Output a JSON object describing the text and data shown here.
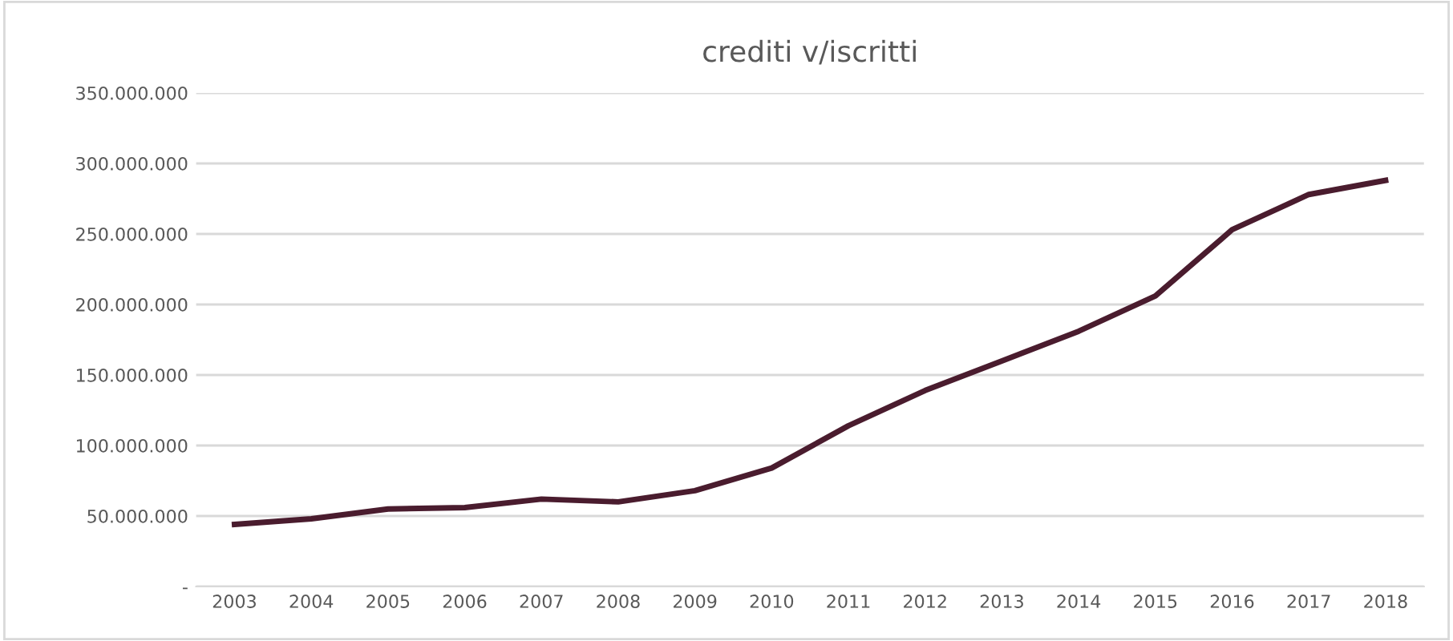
{
  "chart_data": {
    "type": "line",
    "title": "crediti v/iscritti",
    "categories": [
      "2003",
      "2004",
      "2005",
      "2006",
      "2007",
      "2008",
      "2009",
      "2010",
      "2011",
      "2012",
      "2013",
      "2014",
      "2015",
      "2016",
      "2017",
      "2018"
    ],
    "series": [
      {
        "color": "#4a1c2e",
        "values": [
          44000000,
          48000000,
          55000000,
          56000000,
          62000000,
          60000000,
          68000000,
          84000000,
          114000000,
          139000000,
          160000000,
          181000000,
          206000000,
          253000000,
          278000000,
          288000000
        ]
      }
    ],
    "ylim": [
      0,
      350000000
    ],
    "yticks": [
      {
        "value": 0,
        "label": "-"
      },
      {
        "value": 50000000,
        "label": "50.000.000"
      },
      {
        "value": 100000000,
        "label": "100.000.000"
      },
      {
        "value": 150000000,
        "label": "150.000.000"
      },
      {
        "value": 200000000,
        "label": "200.000.000"
      },
      {
        "value": 250000000,
        "label": "250.000.000"
      },
      {
        "value": 300000000,
        "label": "300.000.000"
      },
      {
        "value": 350000000,
        "label": "350.000.000"
      }
    ],
    "grid": "y",
    "marker": "none",
    "line_style": "solid"
  }
}
